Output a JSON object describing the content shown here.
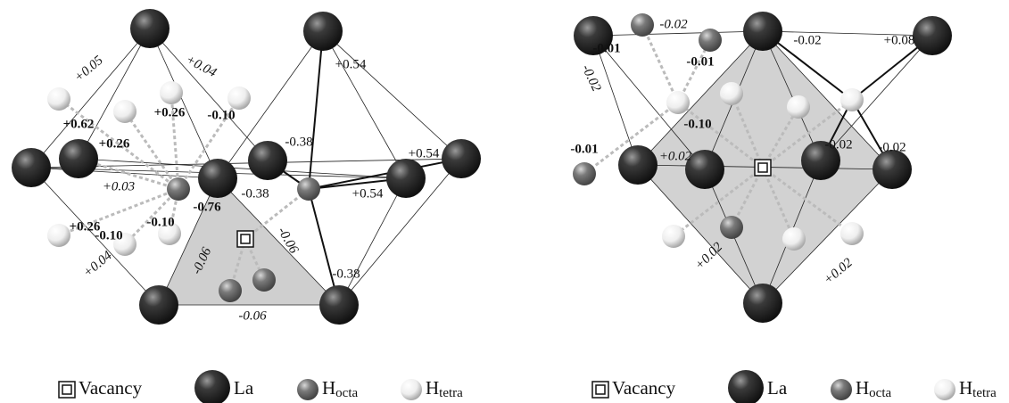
{
  "panels": [
    {
      "labels": [
        "+0.05",
        "+0.04",
        "+0.62",
        "+0.26",
        "+0.26",
        "-0.10",
        "+0.54",
        "-0.38",
        "+0.54",
        "+0.03",
        "-0.38",
        "-0.76",
        "-0.10",
        "+0.26",
        "-0.10",
        "+0.04",
        "-0.06",
        "-0.06",
        "+0.54",
        "-0.38",
        "-0.06"
      ],
      "legend": [
        {
          "label": "Vacancy"
        },
        {
          "label": "La"
        },
        {
          "label": "H",
          "subscript": "octa"
        },
        {
          "label": "H",
          "subscript": "tetra"
        }
      ]
    },
    {
      "labels": [
        "-0.02",
        "-0.01",
        "-0.01",
        "-0.02",
        "-0.02",
        "+0.08",
        "-0.10",
        "-0.01",
        "+0.02",
        "-0.02",
        "-0.02",
        "+0.02",
        "+0.02"
      ],
      "legend": [
        {
          "label": "Vacancy"
        },
        {
          "label": "La"
        },
        {
          "label": "H",
          "subscript": "octa"
        },
        {
          "label": "H",
          "subscript": "tetra"
        }
      ]
    }
  ]
}
